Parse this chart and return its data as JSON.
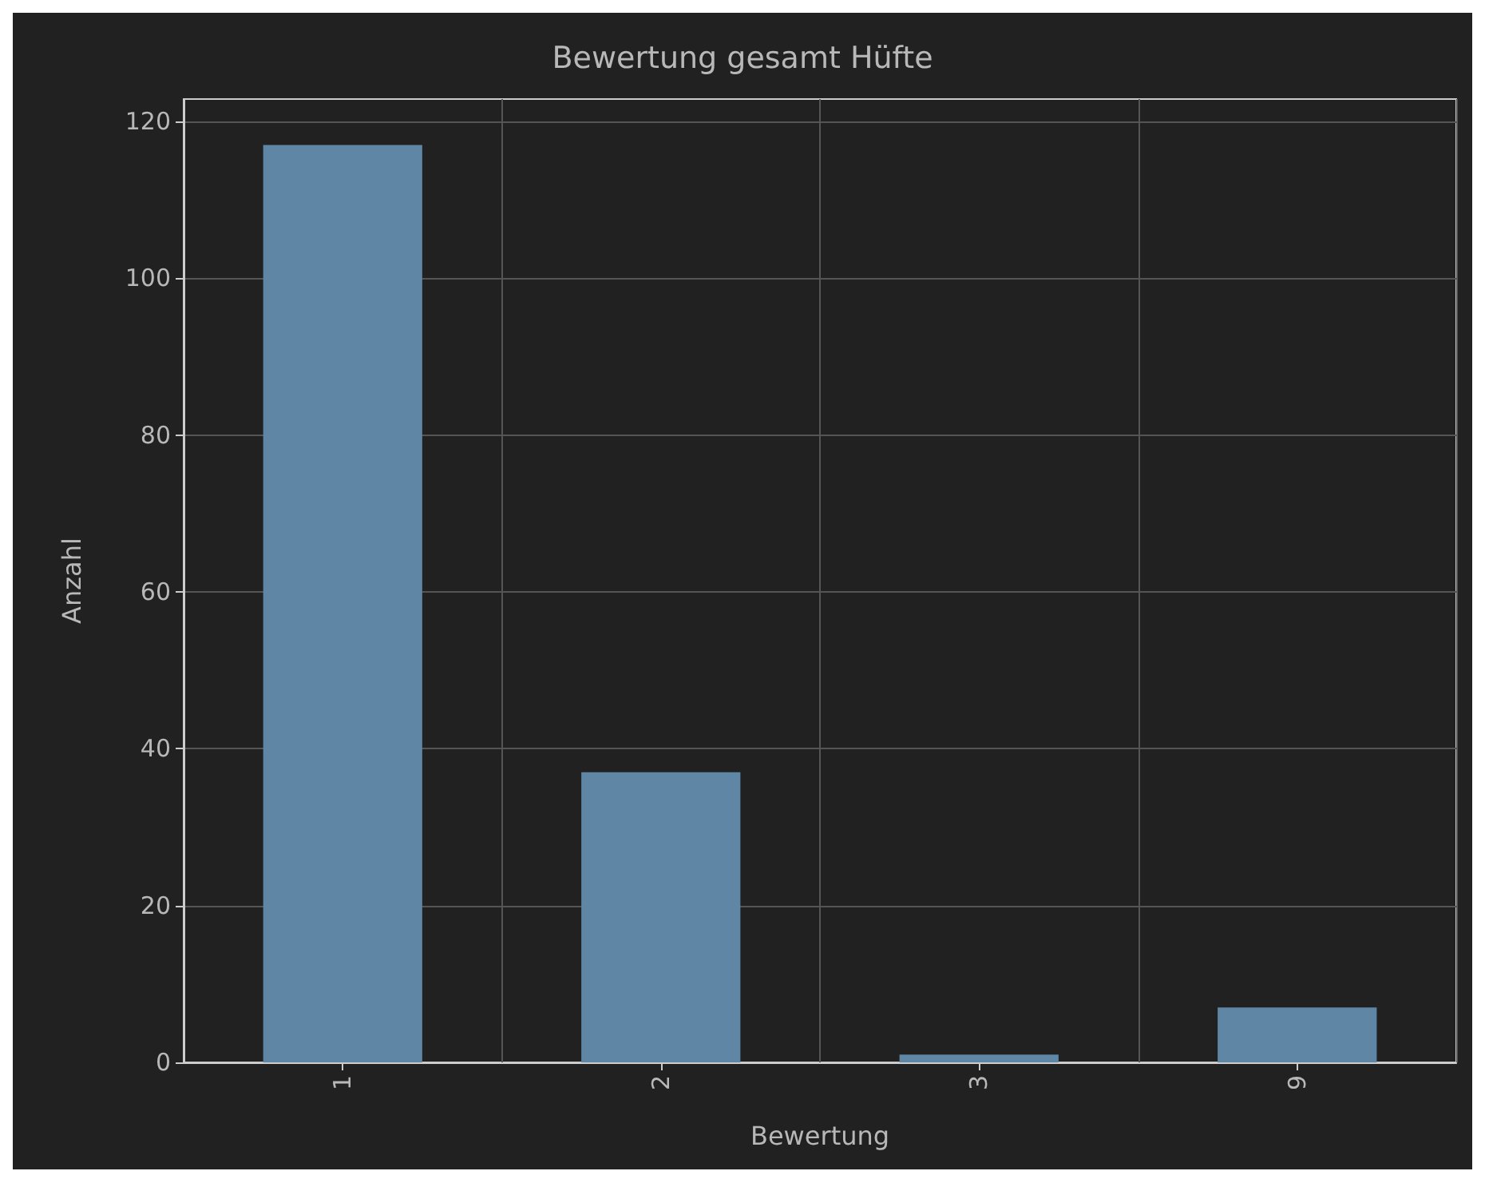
{
  "chart_data": {
    "type": "bar",
    "title": "Bewertung gesamt Hüfte",
    "xlabel": "Bewertung",
    "ylabel": "Anzahl",
    "categories": [
      "1",
      "2",
      "3",
      "9"
    ],
    "values": [
      117,
      37,
      1,
      7
    ],
    "color": "#5f86a5",
    "ylim": [
      0,
      122.85
    ],
    "yticks": [
      0,
      20,
      40,
      60,
      80,
      100,
      120
    ],
    "grid": true
  }
}
